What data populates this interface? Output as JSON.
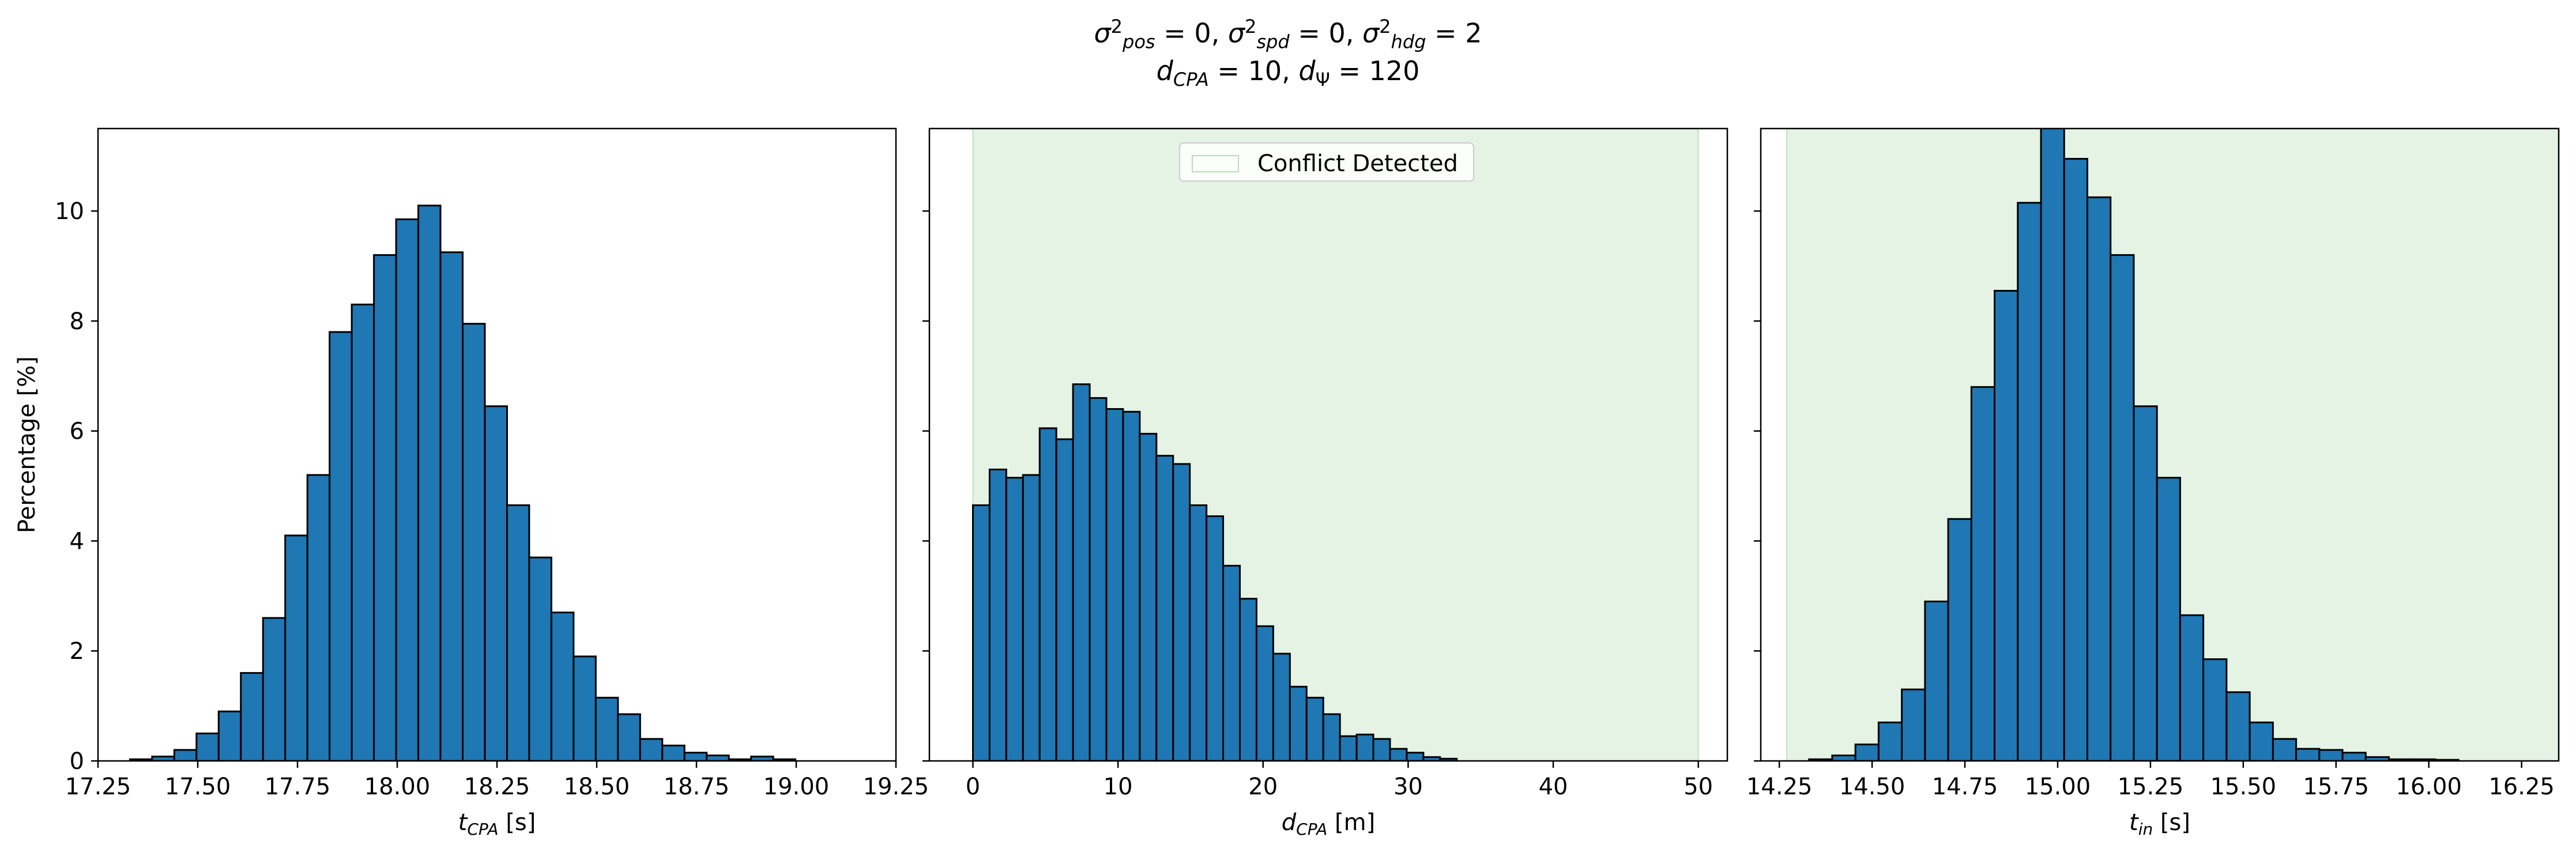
{
  "figure": {
    "title_line1": "σ²pos = 0, σ²spd = 0, σ²hdg = 2",
    "title_line2": "dCPA = 10, dΨ = 120",
    "bar_color": "#1f77b4",
    "edge_color": "#000000",
    "span_color": "#2ca02c"
  },
  "chart_data": [
    {
      "type": "bar",
      "xlabel": "tCPA [s]",
      "ylabel": "Percentage [%]",
      "xlim": [
        17.25,
        19.25
      ],
      "ylim": [
        0,
        11.5
      ],
      "xticks": [
        "17.25",
        "17.50",
        "17.75",
        "18.00",
        "18.25",
        "18.50",
        "18.75",
        "19.00",
        "19.25"
      ],
      "yticks": [
        "0",
        "2",
        "4",
        "6",
        "8",
        "10"
      ],
      "bin_start": 17.33,
      "bin_width": 0.0556,
      "values": [
        0.03,
        0.08,
        0.2,
        0.5,
        0.9,
        1.6,
        2.6,
        4.1,
        5.2,
        7.8,
        8.3,
        9.2,
        9.85,
        10.1,
        9.25,
        7.95,
        6.45,
        4.65,
        3.7,
        2.7,
        1.9,
        1.15,
        0.85,
        0.4,
        0.28,
        0.15,
        0.1,
        0.03,
        0.08,
        0.03
      ],
      "grid": false
    },
    {
      "type": "bar",
      "xlabel": "dCPA [m]",
      "xlim": [
        -3,
        52
      ],
      "ylim": [
        0,
        11.5
      ],
      "xticks": [
        "0",
        "10",
        "20",
        "30",
        "40",
        "50"
      ],
      "bin_start": 0,
      "bin_width": 1.15,
      "values": [
        4.65,
        5.3,
        5.15,
        5.2,
        6.05,
        5.85,
        6.85,
        6.6,
        6.4,
        6.35,
        5.95,
        5.55,
        5.4,
        4.65,
        4.45,
        3.55,
        2.95,
        2.45,
        1.95,
        1.35,
        1.15,
        0.85,
        0.45,
        0.48,
        0.4,
        0.22,
        0.15,
        0.07,
        0.04
      ],
      "span": [
        0,
        50
      ],
      "legend": "Conflict Detected",
      "legend_loc": "upper center",
      "grid": false
    },
    {
      "type": "bar",
      "xlabel": "tin [s]",
      "xlim": [
        14.2,
        16.35
      ],
      "ylim": [
        0,
        11.5
      ],
      "xticks": [
        "14.25",
        "14.50",
        "14.75",
        "15.00",
        "15.25",
        "15.50",
        "15.75",
        "16.00",
        "16.25"
      ],
      "bin_start": 14.33,
      "bin_width": 0.0625,
      "values": [
        0.03,
        0.1,
        0.3,
        0.7,
        1.3,
        2.9,
        4.4,
        6.8,
        8.55,
        10.15,
        11.6,
        10.95,
        10.25,
        9.2,
        6.45,
        5.15,
        2.65,
        1.85,
        1.25,
        0.7,
        0.4,
        0.22,
        0.2,
        0.15,
        0.07,
        0.03,
        0.03,
        0.02
      ],
      "span": [
        14.27,
        16.35
      ],
      "grid": false
    }
  ]
}
